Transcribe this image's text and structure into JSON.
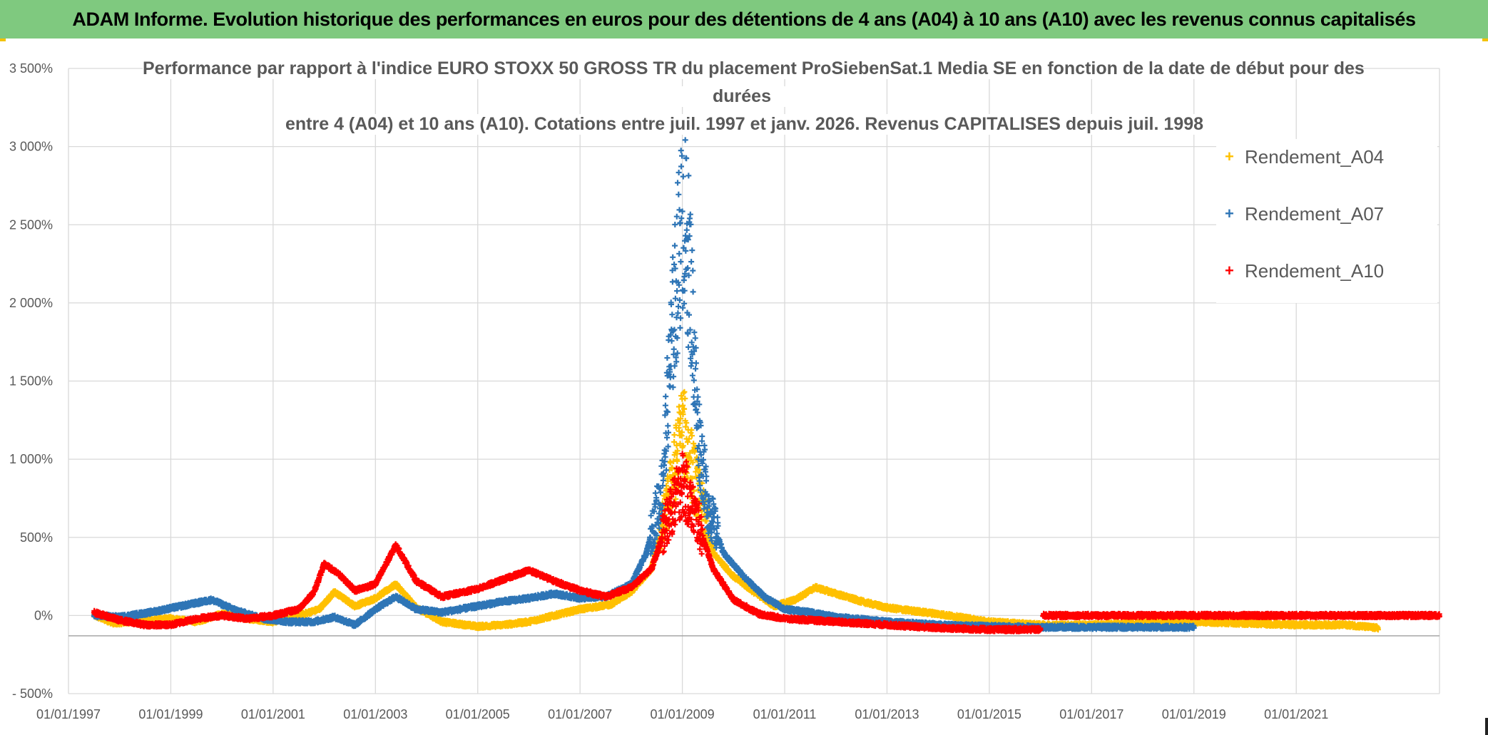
{
  "header": {
    "banner": "ADAM Informe. Evolution historique des performances en euros pour des détentions de 4 ans (A04) à 10 ans (A10) avec les revenus connus capitalisés"
  },
  "colors": {
    "banner_bg": "#7fc97f",
    "corner_accent": "#f2c200",
    "A04": "#ffc000",
    "A07": "#2e75b6",
    "A10": "#ff0000",
    "grid": "#d9d9d9",
    "axis_text": "#595959"
  },
  "chart_data": {
    "type": "scatter",
    "title_lines": [
      "Performance par rapport à l'indice EURO STOXX 50 GROSS TR  du placement ProSiebenSat.1 Media SE en fonction de la date de début pour des",
      "durées",
      "entre 4 (A04) et 10 ans (A10). Cotations entre juil. 1997 et janv. 2026. Revenus CAPITALISES depuis juil. 1998"
    ],
    "x_axis": {
      "min": 1997.0,
      "max": 2023.8,
      "ticks": [
        1997,
        1999,
        2001,
        2003,
        2005,
        2007,
        2009,
        2011,
        2013,
        2015,
        2017,
        2019,
        2021
      ],
      "tick_labels": [
        "01/01/1997",
        "01/01/1999",
        "01/01/2001",
        "01/01/2003",
        "01/01/2005",
        "01/01/2007",
        "01/01/2009",
        "01/01/2011",
        "01/01/2013",
        "01/01/2015",
        "01/01/2017",
        "01/01/2019",
        "01/01/2021"
      ]
    },
    "y_axis": {
      "min": -500,
      "max": 3500,
      "ticks": [
        -500,
        0,
        500,
        1000,
        1500,
        2000,
        2500,
        3000,
        3500
      ],
      "tick_labels": [
        "- 500%",
        "0%",
        "500%",
        "1 000%",
        "1 500%",
        "2 000%",
        "2 500%",
        "3 000%",
        "3 500%"
      ],
      "baseline": -130
    },
    "legend": [
      "Rendement_A04",
      "Rendement_A07",
      "Rendement_A10"
    ],
    "series": [
      {
        "name": "Rendement_A04",
        "marker": "+",
        "anchors": [
          [
            1997.5,
            0
          ],
          [
            1997.9,
            -50
          ],
          [
            1998.5,
            -30
          ],
          [
            1999.0,
            -20
          ],
          [
            1999.5,
            -40
          ],
          [
            2000.0,
            10
          ],
          [
            2000.5,
            -20
          ],
          [
            2001.0,
            -40
          ],
          [
            2001.5,
            0
          ],
          [
            2001.9,
            40
          ],
          [
            2002.2,
            150
          ],
          [
            2002.6,
            60
          ],
          [
            2003.0,
            110
          ],
          [
            2003.4,
            200
          ],
          [
            2003.8,
            50
          ],
          [
            2004.3,
            -40
          ],
          [
            2005.0,
            -70
          ],
          [
            2005.5,
            -60
          ],
          [
            2006.0,
            -40
          ],
          [
            2006.5,
            0
          ],
          [
            2007.0,
            40
          ],
          [
            2007.6,
            70
          ],
          [
            2008.0,
            150
          ],
          [
            2008.4,
            300
          ],
          [
            2008.7,
            700
          ],
          [
            2009.0,
            1200
          ],
          [
            2009.3,
            800
          ],
          [
            2009.6,
            400
          ],
          [
            2010.0,
            250
          ],
          [
            2010.4,
            150
          ],
          [
            2010.8,
            60
          ],
          [
            2011.2,
            100
          ],
          [
            2011.6,
            180
          ],
          [
            2012.0,
            140
          ],
          [
            2012.5,
            90
          ],
          [
            2013.0,
            50
          ],
          [
            2014.0,
            10
          ],
          [
            2015.0,
            -40
          ],
          [
            2016.0,
            -60
          ],
          [
            2017.0,
            -60
          ],
          [
            2018.0,
            -50
          ],
          [
            2019.0,
            -40
          ],
          [
            2020.0,
            -50
          ],
          [
            2021.0,
            -60
          ],
          [
            2022.0,
            -60
          ],
          [
            2022.6,
            -80
          ]
        ]
      },
      {
        "name": "Rendement_A07",
        "marker": "+",
        "anchors": [
          [
            1997.5,
            0
          ],
          [
            1998.0,
            -10
          ],
          [
            1998.6,
            20
          ],
          [
            1999.2,
            60
          ],
          [
            1999.8,
            100
          ],
          [
            2000.3,
            30
          ],
          [
            2000.8,
            -20
          ],
          [
            2001.3,
            -40
          ],
          [
            2001.8,
            -40
          ],
          [
            2002.2,
            -10
          ],
          [
            2002.6,
            -60
          ],
          [
            2003.0,
            40
          ],
          [
            2003.4,
            120
          ],
          [
            2003.8,
            40
          ],
          [
            2004.3,
            20
          ],
          [
            2005.0,
            60
          ],
          [
            2005.5,
            90
          ],
          [
            2006.0,
            110
          ],
          [
            2006.5,
            140
          ],
          [
            2007.0,
            110
          ],
          [
            2007.5,
            120
          ],
          [
            2008.0,
            200
          ],
          [
            2008.3,
            400
          ],
          [
            2008.6,
            800
          ],
          [
            2008.8,
            1800
          ],
          [
            2009.0,
            2600
          ],
          [
            2009.15,
            2200
          ],
          [
            2009.3,
            1200
          ],
          [
            2009.5,
            700
          ],
          [
            2009.8,
            400
          ],
          [
            2010.2,
            250
          ],
          [
            2010.6,
            120
          ],
          [
            2011.0,
            40
          ],
          [
            2011.5,
            20
          ],
          [
            2012.0,
            -10
          ],
          [
            2013.0,
            -40
          ],
          [
            2014.0,
            -60
          ],
          [
            2015.0,
            -70
          ],
          [
            2016.0,
            -75
          ],
          [
            2017.0,
            -75
          ],
          [
            2018.0,
            -75
          ],
          [
            2019.0,
            -75
          ]
        ]
      },
      {
        "name": "Rendement_A10",
        "marker": "+",
        "anchors": [
          [
            1997.5,
            20
          ],
          [
            1998.0,
            -30
          ],
          [
            1998.5,
            -60
          ],
          [
            1999.0,
            -60
          ],
          [
            1999.5,
            -20
          ],
          [
            2000.0,
            0
          ],
          [
            2000.5,
            -20
          ],
          [
            2001.0,
            0
          ],
          [
            2001.5,
            40
          ],
          [
            2001.8,
            150
          ],
          [
            2002.0,
            330
          ],
          [
            2002.3,
            260
          ],
          [
            2002.6,
            160
          ],
          [
            2003.0,
            200
          ],
          [
            2003.4,
            450
          ],
          [
            2003.8,
            220
          ],
          [
            2004.3,
            120
          ],
          [
            2005.0,
            170
          ],
          [
            2005.5,
            230
          ],
          [
            2006.0,
            290
          ],
          [
            2006.5,
            220
          ],
          [
            2007.0,
            160
          ],
          [
            2007.5,
            120
          ],
          [
            2008.0,
            180
          ],
          [
            2008.4,
            300
          ],
          [
            2008.7,
            600
          ],
          [
            2009.0,
            850
          ],
          [
            2009.3,
            600
          ],
          [
            2009.6,
            300
          ],
          [
            2010.0,
            100
          ],
          [
            2010.5,
            10
          ],
          [
            2011.0,
            -20
          ],
          [
            2012.0,
            -40
          ],
          [
            2013.0,
            -60
          ],
          [
            2014.0,
            -80
          ],
          [
            2015.0,
            -90
          ],
          [
            2016.0,
            -90
          ]
        ]
      },
      {
        "name": "Rendement_A10 (flat)",
        "marker": "+",
        "anchors": [
          [
            2016.05,
            0
          ],
          [
            2023.8,
            0
          ]
        ]
      }
    ]
  }
}
